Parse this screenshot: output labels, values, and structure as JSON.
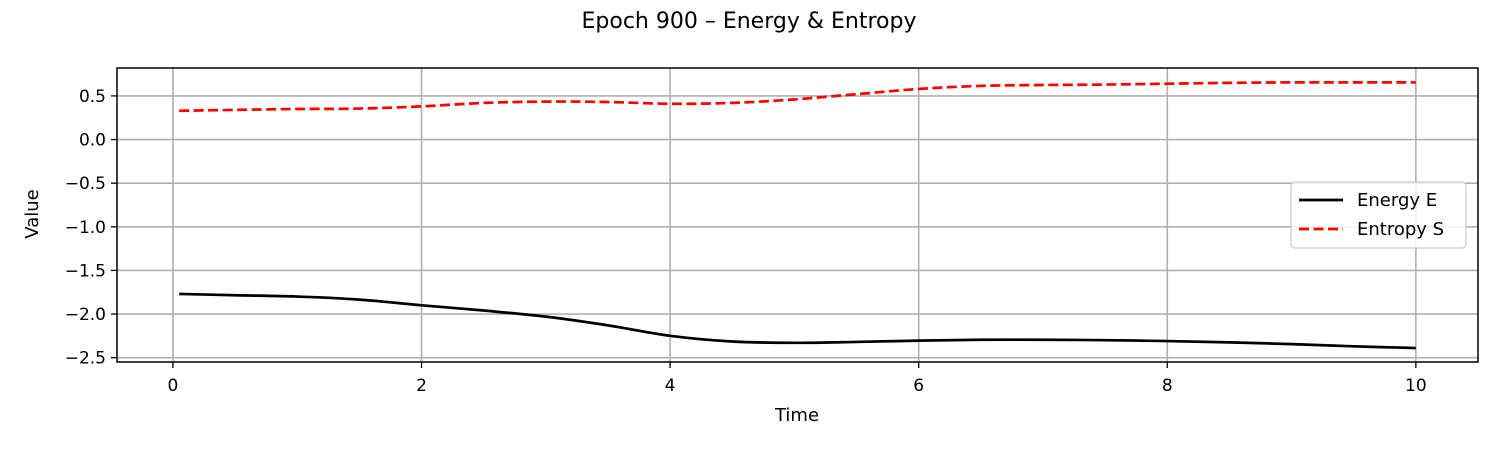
{
  "chart_data": {
    "type": "line",
    "title": "Epoch 900 – Energy & Entropy",
    "xlabel": "Time",
    "ylabel": "Value",
    "xlim": [
      -0.45,
      10.5
    ],
    "ylim": [
      -2.55,
      0.82
    ],
    "xticks": [
      0,
      2,
      4,
      6,
      8,
      10
    ],
    "yticks": [
      0.5,
      0.0,
      -0.5,
      -1.0,
      -1.5,
      -2.0,
      -2.5
    ],
    "xtick_labels": [
      "0",
      "2",
      "4",
      "6",
      "8",
      "10"
    ],
    "ytick_labels": [
      "0.5",
      "0.0",
      "−0.5",
      "−1.0",
      "−1.5",
      "−2.0",
      "−2.5"
    ],
    "grid": true,
    "legend_position": "center-right",
    "series": [
      {
        "name": "Energy E",
        "color": "#000000",
        "style": "solid",
        "x": [
          0.05,
          0.5,
          1.0,
          1.5,
          2.0,
          2.5,
          3.0,
          3.5,
          4.0,
          4.5,
          5.0,
          5.5,
          6.0,
          6.5,
          7.0,
          7.5,
          8.0,
          8.5,
          9.0,
          9.5,
          10.0
        ],
        "y": [
          -1.77,
          -1.785,
          -1.8,
          -1.835,
          -1.9,
          -1.96,
          -2.03,
          -2.13,
          -2.25,
          -2.315,
          -2.33,
          -2.32,
          -2.305,
          -2.295,
          -2.295,
          -2.3,
          -2.31,
          -2.325,
          -2.345,
          -2.37,
          -2.39
        ]
      },
      {
        "name": "Entropy S",
        "color": "#ff0000",
        "style": "dashed",
        "x": [
          0.05,
          0.5,
          1.0,
          1.5,
          2.0,
          2.5,
          3.0,
          3.5,
          4.0,
          4.5,
          5.0,
          5.5,
          6.0,
          6.5,
          7.0,
          7.5,
          8.0,
          8.5,
          9.0,
          9.5,
          10.0
        ],
        "y": [
          0.33,
          0.34,
          0.35,
          0.355,
          0.38,
          0.42,
          0.435,
          0.43,
          0.41,
          0.42,
          0.46,
          0.52,
          0.58,
          0.615,
          0.625,
          0.63,
          0.64,
          0.65,
          0.655,
          0.655,
          0.655
        ]
      }
    ]
  }
}
